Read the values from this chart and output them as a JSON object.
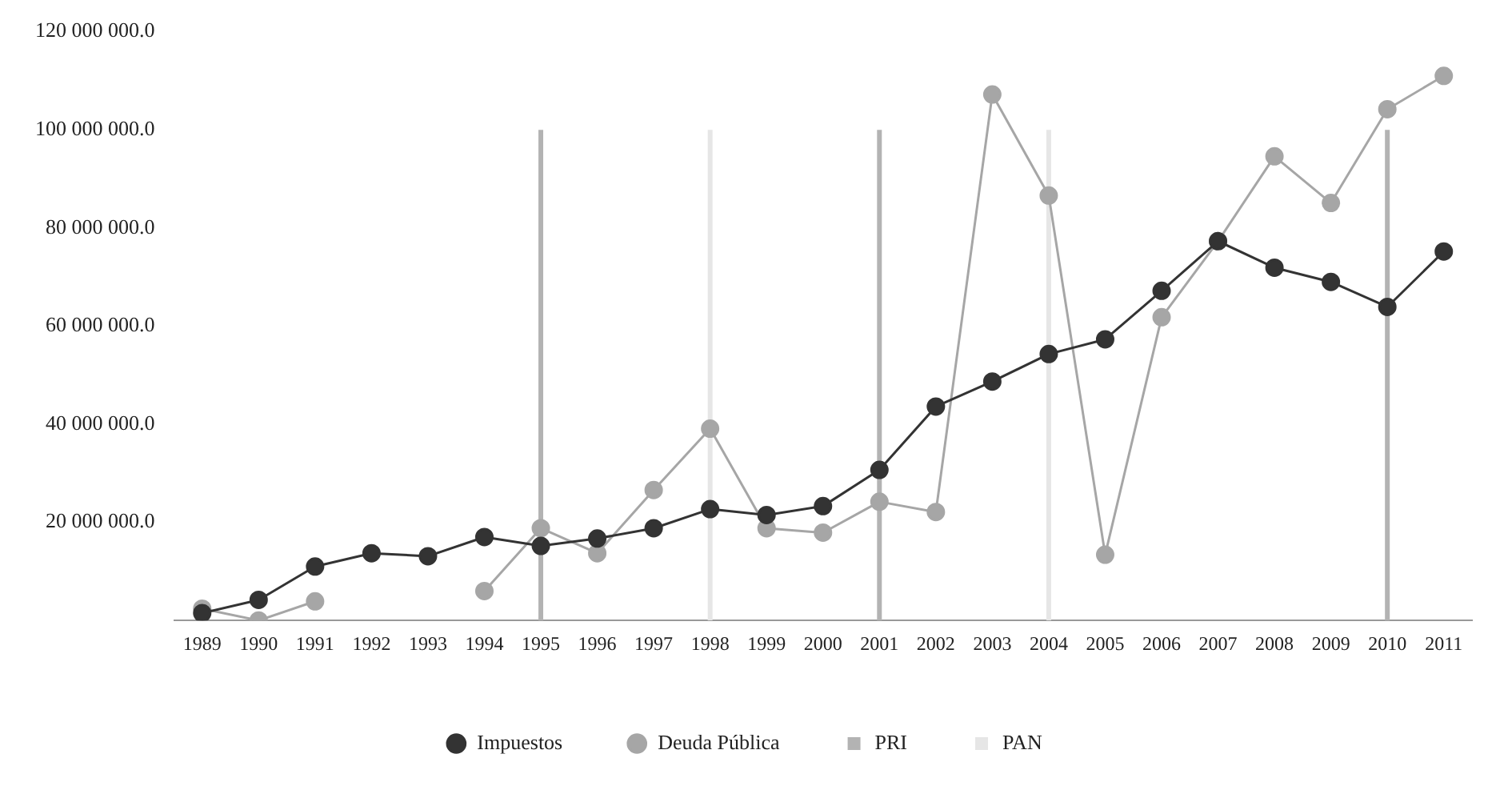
{
  "chart_data": {
    "type": "line",
    "categories": [
      "1989",
      "1990",
      "1991",
      "1992",
      "1993",
      "1994",
      "1995",
      "1996",
      "1997",
      "1998",
      "1999",
      "2000",
      "2001",
      "2002",
      "2003",
      "2004",
      "2005",
      "2006",
      "2007",
      "2008",
      "2009",
      "2010",
      "2011"
    ],
    "series": [
      {
        "name": "Impuestos",
        "color": "#333333",
        "values": [
          1500000,
          4200000,
          11000000,
          13700000,
          13100000,
          17000000,
          15200000,
          16700000,
          18800000,
          22700000,
          21500000,
          23300000,
          30700000,
          43600000,
          48700000,
          54300000,
          57300000,
          67200000,
          77300000,
          71900000,
          69000000,
          63900000,
          75200000
        ]
      },
      {
        "name": "Deuda Pública",
        "color": "#a6a6a6",
        "values": [
          2400000,
          0,
          3900000,
          null,
          null,
          6000000,
          18800000,
          13700000,
          26600000,
          39100000,
          18800000,
          17900000,
          24200000,
          22100000,
          107200000,
          86600000,
          13400000,
          61800000,
          77300000,
          94600000,
          85100000,
          104200000,
          111000000
        ]
      },
      {
        "name": "PRI",
        "type": "bar",
        "color": "#b3b3b3",
        "values": [
          null,
          null,
          null,
          null,
          null,
          null,
          100000000,
          null,
          null,
          null,
          null,
          null,
          100000000,
          null,
          null,
          null,
          null,
          null,
          null,
          null,
          null,
          100000000,
          null
        ]
      },
      {
        "name": "PAN",
        "type": "bar",
        "color": "#e6e6e6",
        "values": [
          null,
          null,
          null,
          null,
          null,
          null,
          null,
          null,
          null,
          100000000,
          null,
          null,
          null,
          null,
          null,
          100000000,
          null,
          null,
          null,
          null,
          null,
          null,
          null
        ]
      }
    ],
    "ylim": [
      0,
      120000000
    ],
    "yticks": [
      {
        "value": 0,
        "label": null
      },
      {
        "value": 20000000,
        "label": "20 000 000.0"
      },
      {
        "value": 40000000,
        "label": "40 000 000.0"
      },
      {
        "value": 60000000,
        "label": "60 000 000.0"
      },
      {
        "value": 80000000,
        "label": "80 000 000.0"
      },
      {
        "value": 100000000,
        "label": "100 000 000.0"
      },
      {
        "value": 120000000,
        "label": "120 000 000.0"
      }
    ],
    "grid": false,
    "legend": "bottom",
    "marker": "circle",
    "line_style": "solid"
  }
}
